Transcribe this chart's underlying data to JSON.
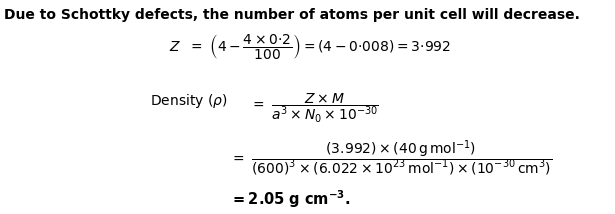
{
  "bg_color": "#ffffff",
  "text_color": "#000000",
  "fig_width": 6.15,
  "fig_height": 2.14,
  "dpi": 100,
  "line1": "Due to Schottky defects, the number of atoms per unit cell will decrease.",
  "line1_fontsize": 10.0,
  "eq_fontsize": 10.0
}
